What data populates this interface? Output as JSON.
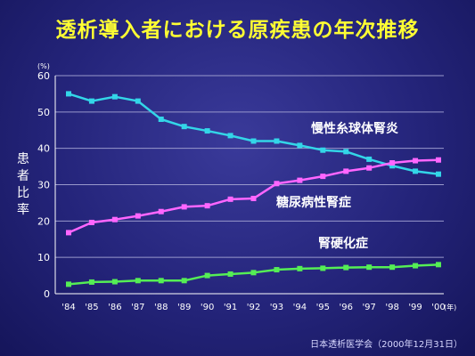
{
  "page": {
    "title": "透析導入者における原疾患の年次推移",
    "source": "日本透析医学会（2000年12月31日）"
  },
  "chart_data": {
    "type": "line",
    "title": "透析導入者における原疾患の年次推移",
    "ylabel": "患者比率",
    "yunit": "(%)",
    "xunit": "(年)",
    "ylim": [
      0,
      60
    ],
    "yticks": [
      0,
      10,
      20,
      30,
      40,
      50,
      60
    ],
    "grid": true,
    "categories": [
      "'84",
      "'85",
      "'86",
      "'87",
      "'88",
      "'89",
      "'90",
      "'91",
      "'92",
      "'93",
      "'94",
      "'95",
      "'96",
      "'97",
      "'98",
      "'99",
      "'00"
    ],
    "series": [
      {
        "name": "慢性糸球体腎炎",
        "color": "#33d6e8",
        "values": [
          55,
          53,
          54.2,
          53,
          48,
          46,
          44.8,
          43.5,
          42,
          42,
          40.8,
          39.5,
          39.1,
          37,
          35.2,
          33.7,
          32.9
        ]
      },
      {
        "name": "糖尿病性腎症",
        "color": "#ff66ff",
        "values": [
          16.8,
          19.6,
          20.4,
          21.4,
          22.6,
          23.9,
          24.2,
          26,
          26.2,
          30.3,
          31.2,
          32.3,
          33.7,
          34.6,
          36,
          36.6,
          36.8
        ]
      },
      {
        "name": "腎硬化症",
        "color": "#55ee55",
        "values": [
          2.6,
          3.2,
          3.3,
          3.6,
          3.6,
          3.6,
          5,
          5.4,
          5.8,
          6.6,
          6.9,
          7,
          7.2,
          7.3,
          7.3,
          7.7,
          8
        ]
      }
    ]
  }
}
